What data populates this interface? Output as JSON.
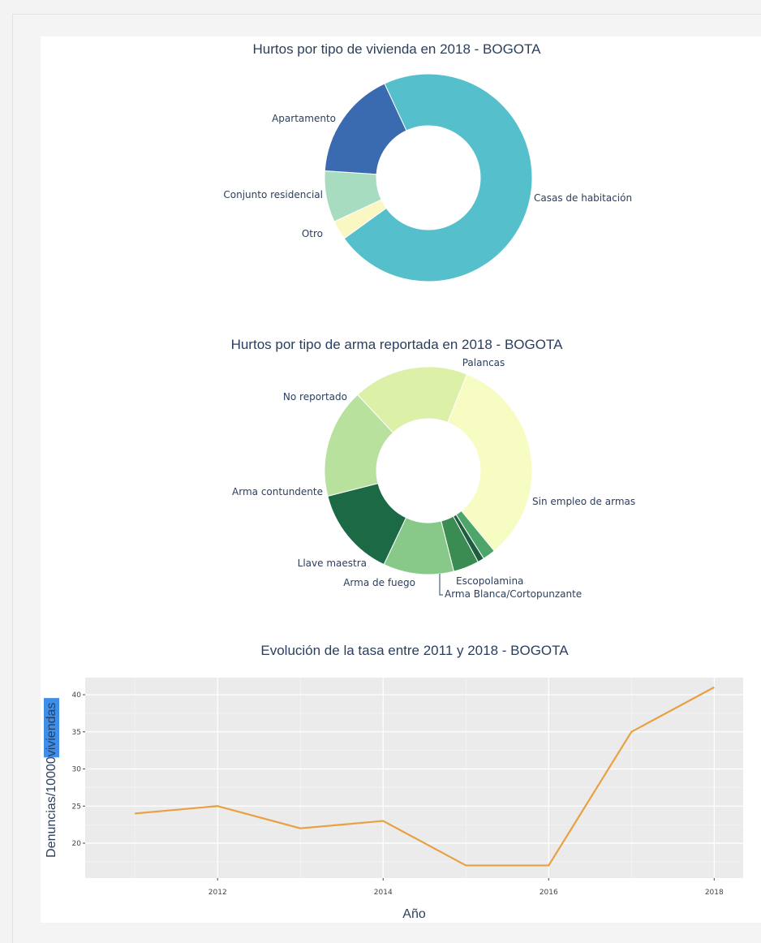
{
  "colors": {
    "line": "#e8a043",
    "plot_bg": "#ebebeb",
    "highlight": "#3f8fe8"
  },
  "chart_data": [
    {
      "type": "pie",
      "hole": true,
      "title": "Hurtos por tipo de vivienda en 2018 - BOGOTA",
      "slices": [
        {
          "label": "Casas de habitación",
          "value": 72,
          "color": "#55bfcc"
        },
        {
          "label": "Otro",
          "value": 3,
          "color": "#fbf7c3"
        },
        {
          "label": "Conjunto residencial",
          "value": 8,
          "color": "#a8dcc0"
        },
        {
          "label": "Apartamento",
          "value": 17,
          "color": "#3a6aaf"
        }
      ]
    },
    {
      "type": "pie",
      "hole": true,
      "title": "Hurtos por tipo de arma reportada en 2018 - BOGOTA",
      "slices": [
        {
          "label": "Palancas",
          "value": 18,
          "color": "#dcf0a8"
        },
        {
          "label": "Sin empleo de armas",
          "value": 33,
          "color": "#f7fcc2"
        },
        {
          "label": "Escopolamina",
          "value": 2,
          "color": "#4ea56a"
        },
        {
          "label": "Arma Blanca/Cortopunzante",
          "value": 1,
          "color": "#1f5d40"
        },
        {
          "label": "Arma de fuego",
          "value": 4,
          "color": "#3b8c52"
        },
        {
          "label": "Llave maestra",
          "value": 11,
          "color": "#88c98a"
        },
        {
          "label": "Arma contundente",
          "value": 14,
          "color": "#1b6a45"
        },
        {
          "label": "No reportado",
          "value": 17,
          "color": "#b7e19c"
        }
      ]
    },
    {
      "type": "line",
      "title": "Evolución de la tasa entre 2011 y 2018 - BOGOTA",
      "xlabel": "Año",
      "ylabel_parts": [
        "Denuncias/10000 ",
        "viviendas"
      ],
      "x": [
        2011,
        2012,
        2013,
        2014,
        2015,
        2016,
        2017,
        2018
      ],
      "y": [
        24,
        25,
        22,
        23,
        17,
        17,
        35,
        41
      ],
      "xticks": [
        2012,
        2014,
        2016,
        2018
      ],
      "yticks": [
        20,
        25,
        30,
        35,
        40
      ],
      "xlim": [
        2010.4,
        2018.35
      ],
      "ylim": [
        15.3,
        42.3
      ],
      "grid": true
    }
  ]
}
